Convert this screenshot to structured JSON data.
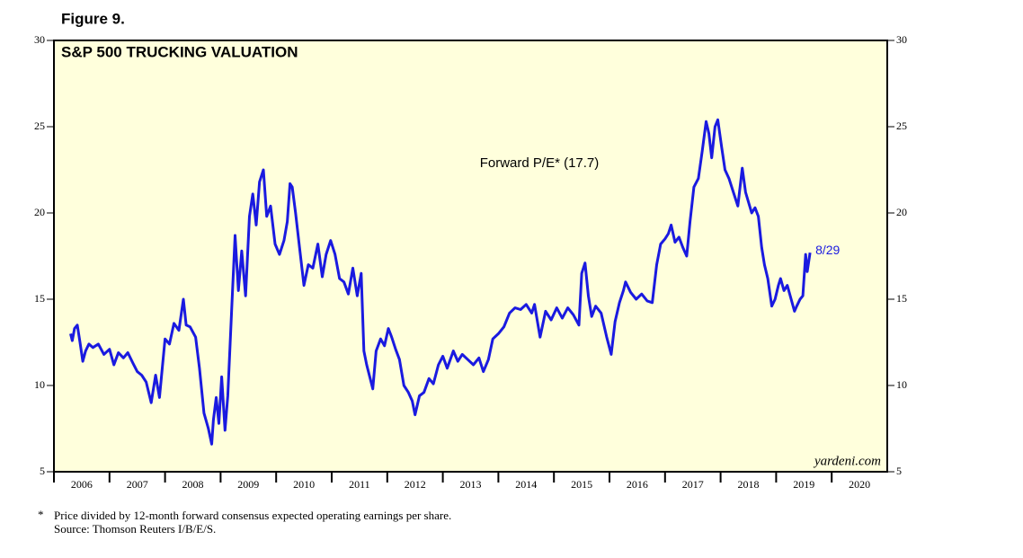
{
  "figure_label": "Figure 9.",
  "chart_data": {
    "type": "line",
    "title": "S&P 500 TRUCKING VALUATION",
    "annotation": "Forward P/E* (17.7)",
    "end_label": "8/29",
    "watermark": "yardeni.com",
    "footnote_marker": "*",
    "footnote": "Price divided by 12-month forward consensus expected operating earnings per share.",
    "source": "Source: Thomson Reuters I/B/E/S.",
    "xlim": [
      2006,
      2021
    ],
    "xticks": [
      2006,
      2007,
      2008,
      2009,
      2010,
      2011,
      2012,
      2013,
      2014,
      2015,
      2016,
      2017,
      2018,
      2019,
      2020
    ],
    "ylim": [
      5,
      30
    ],
    "yticks": [
      5,
      10,
      15,
      20,
      25,
      30
    ],
    "background": "#ffffdc",
    "series": [
      {
        "name": "Forward P/E",
        "color": "#1a1ae0",
        "x": [
          2006.3,
          2006.33,
          2006.37,
          2006.42,
          2006.47,
          2006.52,
          2006.57,
          2006.63,
          2006.7,
          2006.8,
          2006.9,
          2007.0,
          2007.08,
          2007.16,
          2007.25,
          2007.33,
          2007.42,
          2007.5,
          2007.58,
          2007.66,
          2007.75,
          2007.83,
          2007.9,
          2007.95,
          2008.0,
          2008.08,
          2008.16,
          2008.25,
          2008.33,
          2008.38,
          2008.45,
          2008.55,
          2008.62,
          2008.7,
          2008.78,
          2008.84,
          2008.87,
          2008.92,
          2008.97,
          2009.02,
          2009.08,
          2009.13,
          2009.2,
          2009.26,
          2009.32,
          2009.38,
          2009.45,
          2009.52,
          2009.58,
          2009.64,
          2009.7,
          2009.77,
          2009.83,
          2009.9,
          2009.98,
          2010.06,
          2010.14,
          2010.2,
          2010.25,
          2010.29,
          2010.35,
          2010.42,
          2010.5,
          2010.58,
          2010.66,
          2010.75,
          2010.83,
          2010.9,
          2010.98,
          2011.06,
          2011.14,
          2011.22,
          2011.3,
          2011.38,
          2011.46,
          2011.53,
          2011.58,
          2011.63,
          2011.7,
          2011.74,
          2011.8,
          2011.88,
          2011.95,
          2012.02,
          2012.08,
          2012.15,
          2012.22,
          2012.3,
          2012.38,
          2012.45,
          2012.5,
          2012.58,
          2012.66,
          2012.75,
          2012.83,
          2012.92,
          2013.0,
          2013.08,
          2013.19,
          2013.27,
          2013.35,
          2013.45,
          2013.55,
          2013.65,
          2013.73,
          2013.82,
          2013.9,
          2014.0,
          2014.1,
          2014.2,
          2014.3,
          2014.4,
          2014.5,
          2014.6,
          2014.65,
          2014.75,
          2014.85,
          2014.95,
          2015.05,
          2015.15,
          2015.25,
          2015.35,
          2015.45,
          2015.5,
          2015.56,
          2015.62,
          2015.68,
          2015.75,
          2015.85,
          2015.95,
          2016.03,
          2016.1,
          2016.18,
          2016.25,
          2016.29,
          2016.38,
          2016.48,
          2016.58,
          2016.68,
          2016.77,
          2016.85,
          2016.92,
          2017.0,
          2017.06,
          2017.11,
          2017.18,
          2017.25,
          2017.32,
          2017.39,
          2017.45,
          2017.52,
          2017.6,
          2017.67,
          2017.74,
          2017.79,
          2017.84,
          2017.9,
          2017.95,
          2018.02,
          2018.08,
          2018.15,
          2018.22,
          2018.31,
          2018.39,
          2018.45,
          2018.56,
          2018.62,
          2018.68,
          2018.74,
          2018.79,
          2018.85,
          2018.92,
          2018.98,
          2019.04,
          2019.08,
          2019.14,
          2019.2,
          2019.27,
          2019.33,
          2019.37,
          2019.43,
          2019.48,
          2019.53,
          2019.56,
          2019.61
        ],
        "values": [
          13.0,
          12.6,
          13.3,
          13.5,
          12.5,
          11.4,
          12.0,
          12.4,
          12.2,
          12.4,
          11.8,
          12.1,
          11.2,
          11.9,
          11.6,
          11.9,
          11.3,
          10.8,
          10.6,
          10.2,
          9.0,
          10.6,
          9.3,
          11.0,
          12.7,
          12.4,
          13.6,
          13.2,
          15.0,
          13.5,
          13.4,
          12.8,
          11.0,
          8.4,
          7.5,
          6.6,
          8.0,
          9.3,
          7.8,
          10.5,
          7.4,
          9.4,
          14.5,
          18.7,
          15.5,
          17.8,
          15.2,
          19.8,
          21.1,
          19.3,
          21.8,
          22.5,
          19.8,
          20.4,
          18.2,
          17.6,
          18.4,
          19.5,
          21.7,
          21.5,
          20.0,
          18.0,
          15.8,
          17.0,
          16.8,
          18.2,
          16.3,
          17.6,
          18.4,
          17.6,
          16.2,
          16.0,
          15.3,
          16.8,
          15.2,
          16.5,
          12.0,
          11.2,
          10.3,
          9.8,
          12.0,
          12.7,
          12.3,
          13.3,
          12.8,
          12.1,
          11.5,
          10.0,
          9.6,
          9.1,
          8.3,
          9.4,
          9.6,
          10.4,
          10.1,
          11.2,
          11.7,
          11.0,
          12.0,
          11.4,
          11.8,
          11.5,
          11.2,
          11.6,
          10.8,
          11.5,
          12.7,
          13.0,
          13.4,
          14.2,
          14.5,
          14.4,
          14.7,
          14.2,
          14.7,
          12.8,
          14.3,
          13.8,
          14.5,
          13.9,
          14.5,
          14.1,
          13.5,
          16.5,
          17.1,
          15.2,
          14.0,
          14.6,
          14.2,
          12.8,
          11.8,
          13.7,
          14.8,
          15.5,
          16.0,
          15.4,
          15.0,
          15.3,
          14.9,
          14.8,
          17.0,
          18.2,
          18.5,
          18.8,
          19.3,
          18.3,
          18.6,
          18.0,
          17.5,
          19.5,
          21.5,
          22.0,
          23.6,
          25.3,
          24.6,
          23.2,
          25.0,
          25.4,
          23.8,
          22.5,
          22.0,
          21.3,
          20.4,
          22.6,
          21.2,
          20.0,
          20.3,
          19.8,
          18.0,
          17.0,
          16.2,
          14.6,
          15.0,
          15.8,
          16.2,
          15.5,
          15.8,
          15.0,
          14.3,
          14.6,
          15.0,
          15.2,
          17.6,
          16.6,
          17.7
        ]
      }
    ]
  }
}
